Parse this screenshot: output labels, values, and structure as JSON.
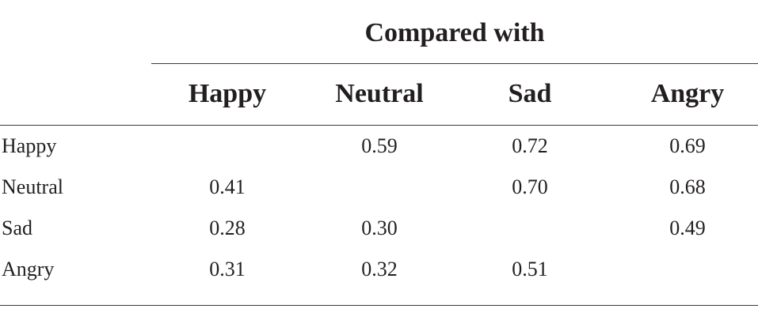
{
  "table": {
    "group_header": "Compared with",
    "columns": [
      "Happy",
      "Neutral",
      "Sad",
      "Angry"
    ],
    "rows": [
      {
        "label": "Happy",
        "values": [
          "",
          "0.59",
          "0.72",
          "0.69"
        ]
      },
      {
        "label": "Neutral",
        "values": [
          "0.41",
          "",
          "0.70",
          "0.68"
        ]
      },
      {
        "label": "Sad",
        "values": [
          "0.28",
          "0.30",
          "",
          "0.49"
        ]
      },
      {
        "label": "Angry",
        "values": [
          "0.31",
          "0.32",
          "0.51",
          ""
        ]
      }
    ]
  }
}
